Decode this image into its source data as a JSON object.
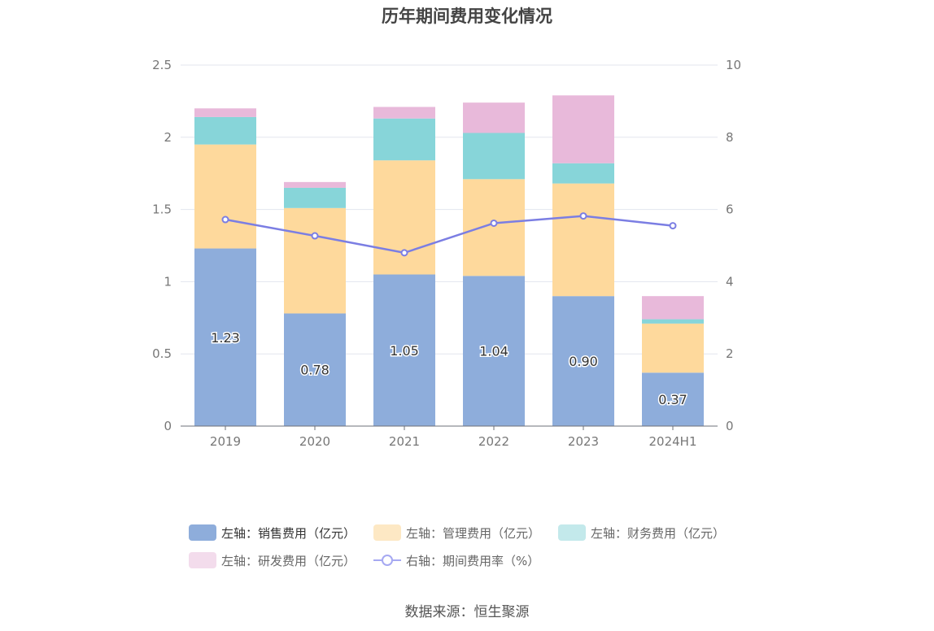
{
  "source": "数据来源：恒生聚源",
  "chart_data": {
    "type": "bar",
    "title": "历年期间费用变化情况",
    "categories": [
      "2019",
      "2020",
      "2021",
      "2022",
      "2023",
      "2024H1"
    ],
    "y_left": {
      "min": 0,
      "max": 2.5,
      "ticks": [
        "0",
        "0.5",
        "1",
        "1.5",
        "2",
        "2.5"
      ]
    },
    "y_right": {
      "min": 0,
      "max": 10,
      "ticks": [
        "0",
        "2",
        "4",
        "6",
        "8",
        "10"
      ]
    },
    "grid": true,
    "legend_position": "bottom",
    "series": [
      {
        "name": "左轴：销售费用（亿元）",
        "type": "bar",
        "stack": "left",
        "color": "#8eaddb",
        "values": [
          1.23,
          0.78,
          1.05,
          1.04,
          0.9,
          0.37
        ],
        "labels": [
          "1.23",
          "0.78",
          "1.05",
          "1.04",
          "0.90",
          "0.37"
        ]
      },
      {
        "name": "左轴：管理费用（亿元）",
        "type": "bar",
        "stack": "left",
        "color": "#fed99c",
        "values": [
          0.72,
          0.73,
          0.79,
          0.67,
          0.78,
          0.34
        ]
      },
      {
        "name": "左轴：财务费用（亿元）",
        "type": "bar",
        "stack": "left",
        "color": "#87d5d9",
        "values": [
          0.19,
          0.14,
          0.29,
          0.32,
          0.14,
          0.03
        ]
      },
      {
        "name": "左轴：研发费用（亿元）",
        "type": "bar",
        "stack": "left",
        "color": "#e8b9da",
        "values": [
          0.06,
          0.04,
          0.08,
          0.21,
          0.47,
          0.16
        ]
      },
      {
        "name": "右轴：期间费用率（%）",
        "type": "line",
        "axis": "right",
        "color": "#7b7ee3",
        "values": [
          5.72,
          5.27,
          4.8,
          5.62,
          5.82,
          5.55
        ]
      }
    ]
  }
}
